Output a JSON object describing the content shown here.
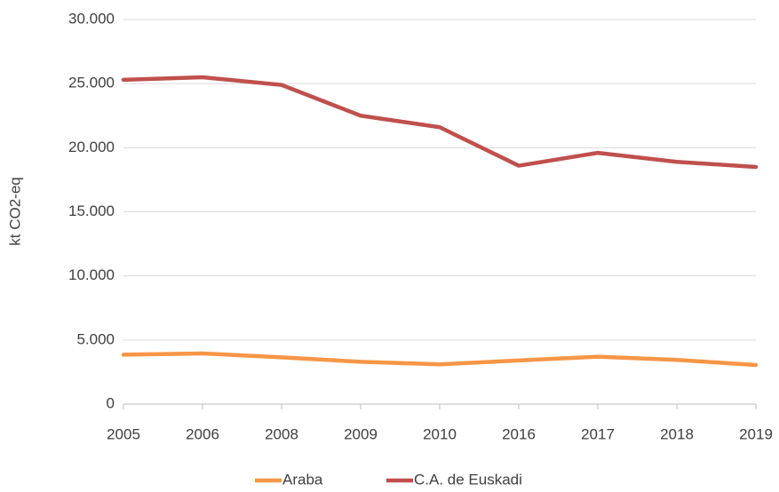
{
  "chart_data": {
    "type": "line",
    "ylabel": "kt CO2-eq",
    "categories": [
      "2005",
      "2006",
      "2008",
      "2009",
      "2010",
      "2016",
      "2017",
      "2018",
      "2019"
    ],
    "series": [
      {
        "name": "Araba",
        "color": "#f79646",
        "values": [
          3850,
          3950,
          3650,
          3300,
          3100,
          3400,
          3700,
          3450,
          3050
        ]
      },
      {
        "name": "C.A. de Euskadi",
        "color": "#c0504d",
        "values": [
          25300,
          25500,
          24900,
          22500,
          21600,
          18600,
          19600,
          18900,
          18500
        ]
      }
    ],
    "ylim": [
      0,
      30000
    ],
    "yticks": [
      0,
      {
        "value": 5000,
        "label": "5.000"
      },
      {
        "value": 10000,
        "label": "10.000"
      },
      {
        "value": 15000,
        "label": "15.000"
      },
      {
        "value": 20000,
        "label": "20.000"
      },
      {
        "value": 25000,
        "label": "25.000"
      },
      {
        "value": 30000,
        "label": "30.000"
      }
    ],
    "grid": true,
    "legend": "bottom"
  }
}
